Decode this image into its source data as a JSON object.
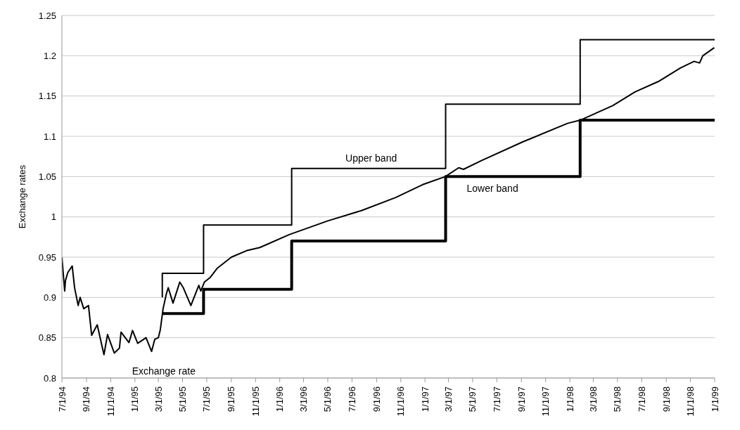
{
  "chart_data": {
    "type": "line",
    "ylabel": "Exchange rates",
    "series": [
      {
        "name": "Exchange rate",
        "color": "#000000",
        "x": [
          "1994-07-01",
          "1994-07-08",
          "1994-07-10",
          "1994-07-16",
          "1994-07-27",
          "1994-08-02",
          "1994-08-11",
          "1994-08-16",
          "1994-08-25",
          "1994-09-06",
          "1994-09-14",
          "1994-09-28",
          "1994-10-15",
          "1994-10-24",
          "1994-11-10",
          "1994-11-23",
          "1994-11-27",
          "1994-12-17",
          "1994-12-26",
          "1995-01-08",
          "1995-01-29",
          "1995-02-12",
          "1995-02-20",
          "1995-03-01",
          "1995-03-06",
          "1995-03-13",
          "1995-03-21",
          "1995-03-26",
          "1995-04-07",
          "1995-04-24",
          "1995-05-03",
          "1995-05-22",
          "1995-06-11",
          "1995-06-16",
          "1995-06-25",
          "1995-07-10",
          "1995-07-27",
          "1995-09-01",
          "1995-10-09",
          "1995-11-12",
          "1996-01-25",
          "1996-05-01",
          "1996-07-26",
          "1996-10-19",
          "1996-12-26",
          "1997-02-21",
          "1997-03-27",
          "1997-04-08",
          "1997-05-24",
          "1997-09-04",
          "1997-12-26",
          "1998-01-27",
          "1998-04-19",
          "1998-06-14",
          "1998-08-12",
          "1998-10-07",
          "1998-11-10",
          "1998-11-24",
          "1998-12-02",
          "1998-12-31"
        ],
        "values": [
          0.95,
          0.908,
          0.921,
          0.931,
          0.939,
          0.912,
          0.89,
          0.9,
          0.886,
          0.89,
          0.853,
          0.866,
          0.829,
          0.854,
          0.831,
          0.837,
          0.857,
          0.844,
          0.859,
          0.843,
          0.85,
          0.833,
          0.848,
          0.85,
          0.86,
          0.886,
          0.904,
          0.912,
          0.893,
          0.919,
          0.912,
          0.89,
          0.915,
          0.908,
          0.919,
          0.925,
          0.936,
          0.95,
          0.958,
          0.962,
          0.978,
          0.995,
          1.008,
          1.024,
          1.04,
          1.05,
          1.061,
          1.059,
          1.07,
          1.093,
          1.116,
          1.12,
          1.138,
          1.155,
          1.168,
          1.185,
          1.193,
          1.191,
          1.2,
          1.21
        ]
      },
      {
        "name": "Upper band",
        "type": "step",
        "color": "#000000",
        "x": [
          "1995-03-11",
          "1995-03-11",
          "1995-06-23",
          "1996-01-31",
          "1997-02-22",
          "1998-01-27",
          "1999-01-01"
        ],
        "values": [
          0.9,
          0.93,
          0.99,
          1.06,
          1.14,
          1.22,
          1.22
        ]
      },
      {
        "name": "Lower band",
        "type": "step",
        "color": "#000000",
        "x": [
          "1995-03-11",
          "1995-06-23",
          "1996-01-31",
          "1997-02-22",
          "1998-01-27",
          "1999-01-01"
        ],
        "values": [
          0.88,
          0.91,
          0.97,
          1.05,
          1.12,
          1.12
        ]
      }
    ],
    "xlim": [
      "1994-07-01",
      "1999-01-01"
    ],
    "xticks": [
      {
        "value": "1994-07-01",
        "label": "7/1/94"
      },
      {
        "value": "1994-09-01",
        "label": "9/1/94"
      },
      {
        "value": "1994-11-01",
        "label": "11/1/94"
      },
      {
        "value": "1995-01-01",
        "label": "1/1/95"
      },
      {
        "value": "1995-03-01",
        "label": "3/1/95"
      },
      {
        "value": "1995-05-01",
        "label": "5/1/95"
      },
      {
        "value": "1995-07-01",
        "label": "7/1/95"
      },
      {
        "value": "1995-09-01",
        "label": "9/1/95"
      },
      {
        "value": "1995-11-01",
        "label": "11/1/95"
      },
      {
        "value": "1996-01-01",
        "label": "1/1/96"
      },
      {
        "value": "1996-03-01",
        "label": "3/1/96"
      },
      {
        "value": "1996-05-01",
        "label": "5/1/96"
      },
      {
        "value": "1996-07-01",
        "label": "7/1/96"
      },
      {
        "value": "1996-09-01",
        "label": "9/1/96"
      },
      {
        "value": "1996-11-01",
        "label": "11/1/96"
      },
      {
        "value": "1997-01-01",
        "label": "1/1/97"
      },
      {
        "value": "1997-03-01",
        "label": "3/1/97"
      },
      {
        "value": "1997-05-01",
        "label": "5/1/97"
      },
      {
        "value": "1997-07-01",
        "label": "7/1/97"
      },
      {
        "value": "1997-09-01",
        "label": "9/1/97"
      },
      {
        "value": "1997-11-01",
        "label": "11/1/97"
      },
      {
        "value": "1998-01-01",
        "label": "1/1/98"
      },
      {
        "value": "1998-03-01",
        "label": "3/1/98"
      },
      {
        "value": "1998-05-01",
        "label": "5/1/98"
      },
      {
        "value": "1998-07-01",
        "label": "7/1/98"
      },
      {
        "value": "1998-09-01",
        "label": "9/1/98"
      },
      {
        "value": "1998-11-01",
        "label": "11/1/98"
      },
      {
        "value": "1999-01-01",
        "label": "1/1/99"
      }
    ],
    "ylim": [
      0.8,
      1.25
    ],
    "yticks": [
      0.8,
      0.85,
      0.9,
      0.95,
      1,
      1.05,
      1.1,
      1.15,
      1.2,
      1.25
    ],
    "grid": "y",
    "legend": false,
    "marker": "none",
    "line_style": "solid"
  }
}
